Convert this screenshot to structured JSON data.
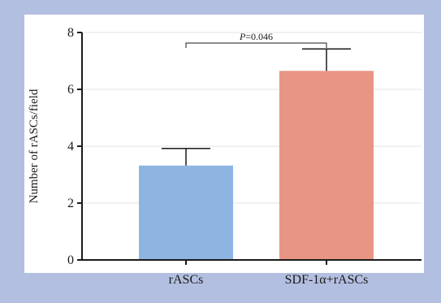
{
  "chart_data": {
    "type": "bar",
    "categories": [
      "rASCs",
      "SDF-1α+rASCs"
    ],
    "values": [
      3.32,
      6.65
    ],
    "error_upper": [
      3.92,
      7.42
    ],
    "ylabel": "Number of rASCs/field",
    "xlabel": "",
    "ylim": [
      0,
      8
    ],
    "yticks": [
      "0",
      "2",
      "4",
      "6",
      "8"
    ],
    "grid": "horizontal",
    "annotation": {
      "p_symbol": "P",
      "p_value": "=0.046"
    },
    "colors": {
      "figure_background": "#b3bfe0",
      "plot_background": "#ffffff",
      "bars": [
        "#8eb4e2",
        "#e89585"
      ],
      "axis": "#1a1a1a",
      "grid": "#e3e3e3"
    }
  }
}
